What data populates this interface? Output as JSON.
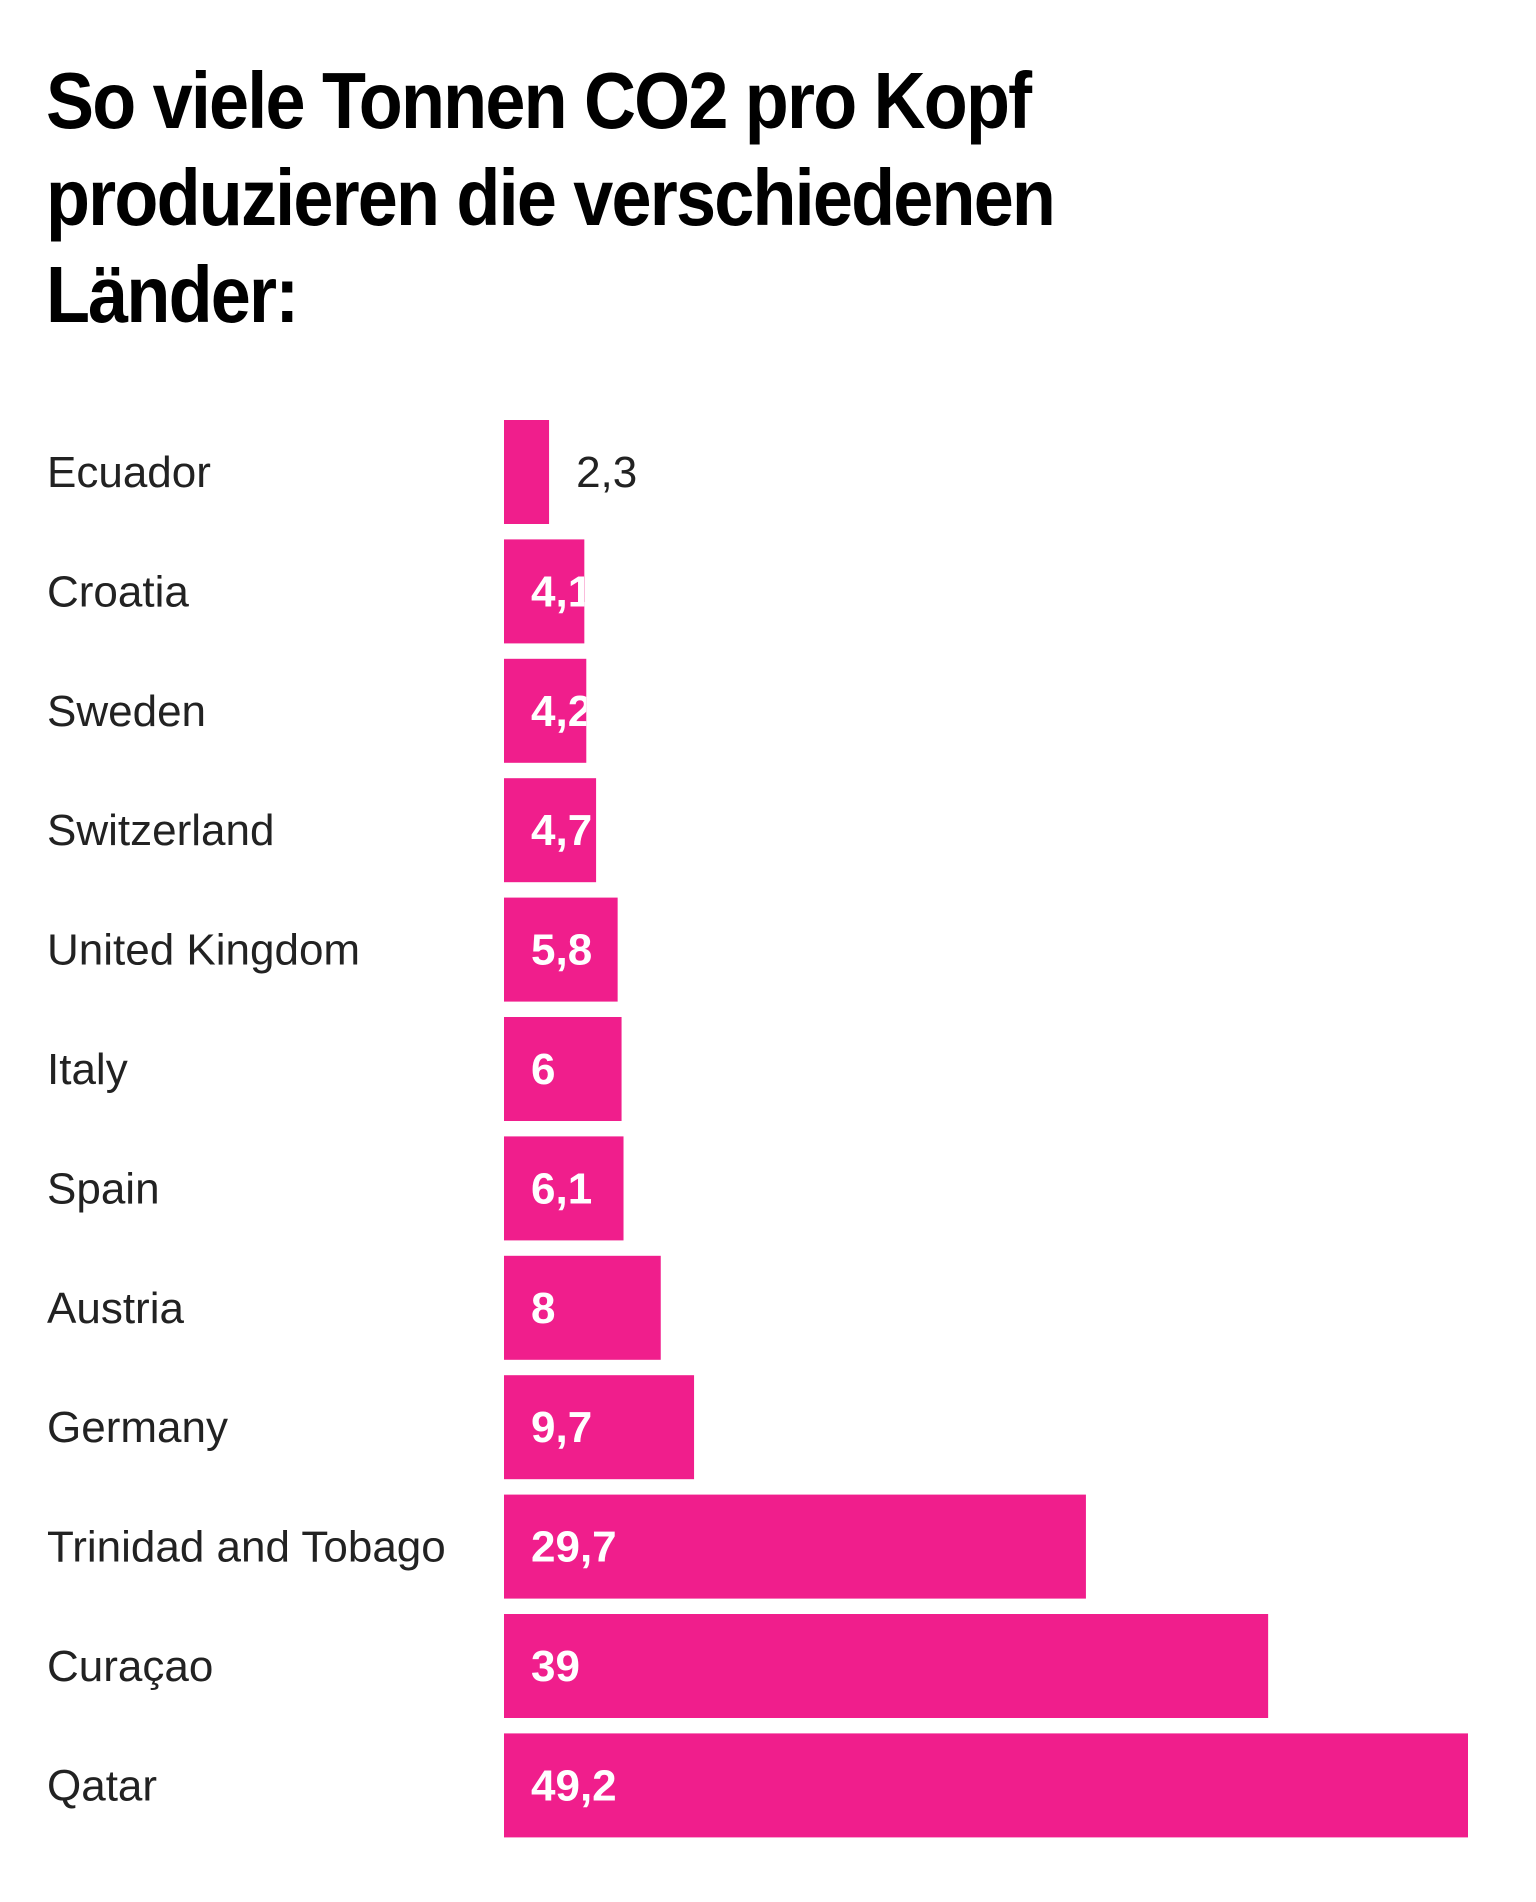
{
  "chart_data": {
    "type": "bar",
    "orientation": "horizontal",
    "title": "So viele Tonnen CO2 pro Kopf produzieren die verschiedenen Länder:",
    "xlabel": "",
    "ylabel": "",
    "categories": [
      "Ecuador",
      "Croatia",
      "Sweden",
      "Switzerland",
      "United Kingdom",
      "Italy",
      "Spain",
      "Austria",
      "Germany",
      "Trinidad and Tobago",
      "Curaçao",
      "Qatar"
    ],
    "values": [
      2.3,
      4.1,
      4.2,
      4.7,
      5.8,
      6,
      6.1,
      8,
      9.7,
      29.7,
      39,
      49.2
    ],
    "value_labels": [
      "2,3",
      "4,1",
      "4,2",
      "4,7",
      "5,8",
      "6",
      "6,1",
      "8",
      "9,7",
      "29,7",
      "39",
      "49,2"
    ],
    "xlim": [
      0,
      49.2
    ],
    "grid": false,
    "legend": "none",
    "bar_color": "#f01e8c"
  }
}
